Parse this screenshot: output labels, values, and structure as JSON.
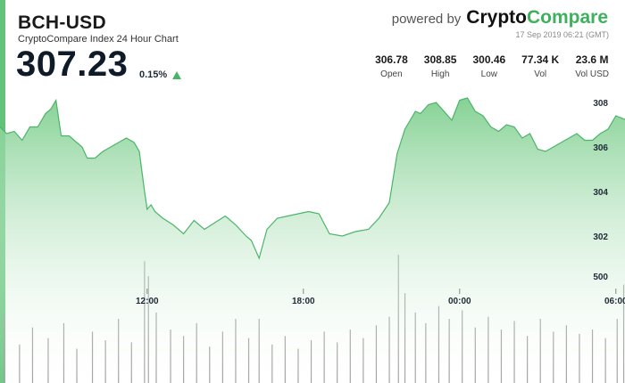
{
  "header": {
    "pair": "BCH-USD",
    "subtitle": "CryptoCompare Index 24 Hour Chart",
    "price": "307.23",
    "change": "0.15%",
    "powered": "powered by",
    "brand_a": "Crypto",
    "brand_b": "Compare",
    "date": "17 Sep 2019 06:21 (GMT)"
  },
  "stats": [
    {
      "value": "306.78",
      "label": "Open"
    },
    {
      "value": "308.85",
      "label": "High"
    },
    {
      "value": "300.46",
      "label": "Low"
    },
    {
      "value": "77.34 K",
      "label": "Vol"
    },
    {
      "value": "23.6 M",
      "label": "Vol USD"
    }
  ],
  "colors": {
    "accent": "#3fb05d",
    "line": "#4cb46a",
    "fill_top": "#7fcf8f",
    "volume": "#9a9a9a"
  },
  "chart_data": {
    "type": "area",
    "x_unit": "hours",
    "x_ticks": [
      {
        "t": 12,
        "label": "12:00"
      },
      {
        "t": 18,
        "label": "18:00"
      },
      {
        "t": 24,
        "label": "00:00"
      },
      {
        "t": 30,
        "label": "06:00"
      }
    ],
    "y_ticks": [
      302,
      304,
      306,
      308
    ],
    "ylim": [
      300.2,
      308.6
    ],
    "xlim": [
      6.35,
      30.35
    ],
    "volume_ticks": [
      {
        "v": 500,
        "label": "500"
      }
    ],
    "volume_ylim": [
      0,
      750
    ],
    "series": [
      {
        "x": [
          6.35,
          6.6,
          6.9,
          7.2,
          7.5,
          7.8,
          8.1,
          8.3,
          8.5,
          8.7,
          9.0,
          9.3,
          9.5,
          9.7,
          10.0,
          10.3,
          10.6,
          10.9,
          11.2,
          11.5,
          11.7,
          11.9,
          12.0,
          12.15,
          12.3,
          12.6,
          13.0,
          13.4,
          13.8,
          14.2,
          14.6,
          15.0,
          15.4,
          15.8,
          16.0,
          16.3,
          16.6,
          17.0,
          17.4,
          17.8,
          18.2,
          18.6,
          19.0,
          19.5,
          20.0,
          20.5,
          20.9,
          21.3,
          21.6,
          21.9,
          22.1,
          22.3,
          22.5,
          22.8,
          23.1,
          23.4,
          23.7,
          24.0,
          24.3,
          24.6,
          24.9,
          25.2,
          25.5,
          25.8,
          26.1,
          26.4,
          26.7,
          27.0,
          27.3,
          27.6,
          27.9,
          28.2,
          28.5,
          28.8,
          29.1,
          29.4,
          29.7,
          30.0,
          30.35
        ],
        "y": [
          306.9,
          306.6,
          306.7,
          306.3,
          306.9,
          306.9,
          307.5,
          307.7,
          308.1,
          306.5,
          306.5,
          306.2,
          306.0,
          305.5,
          305.5,
          305.8,
          306.0,
          306.2,
          306.4,
          306.2,
          305.8,
          304.0,
          303.2,
          303.4,
          303.1,
          302.8,
          302.5,
          302.1,
          302.7,
          302.3,
          302.6,
          302.9,
          302.5,
          302.0,
          301.8,
          301.0,
          302.3,
          302.8,
          302.9,
          303.0,
          303.1,
          303.0,
          302.1,
          302.0,
          302.2,
          302.3,
          302.8,
          303.5,
          305.7,
          306.8,
          307.2,
          307.6,
          307.5,
          307.9,
          308.0,
          307.6,
          307.2,
          308.1,
          308.2,
          307.6,
          307.4,
          306.9,
          306.7,
          307.0,
          306.9,
          306.4,
          306.6,
          305.9,
          305.8,
          306.0,
          306.2,
          306.4,
          306.6,
          306.3,
          306.3,
          306.6,
          306.8,
          307.4,
          307.23
        ]
      }
    ],
    "volume": [
      {
        "t": 6.5,
        "v": 320
      },
      {
        "t": 7.1,
        "v": 180
      },
      {
        "t": 7.6,
        "v": 260
      },
      {
        "t": 8.2,
        "v": 210
      },
      {
        "t": 8.8,
        "v": 280
      },
      {
        "t": 9.3,
        "v": 160
      },
      {
        "t": 9.9,
        "v": 240
      },
      {
        "t": 10.4,
        "v": 200
      },
      {
        "t": 10.9,
        "v": 300
      },
      {
        "t": 11.4,
        "v": 190
      },
      {
        "t": 11.9,
        "v": 570
      },
      {
        "t": 12.05,
        "v": 500
      },
      {
        "t": 12.35,
        "v": 330
      },
      {
        "t": 12.9,
        "v": 250
      },
      {
        "t": 13.4,
        "v": 220
      },
      {
        "t": 13.9,
        "v": 280
      },
      {
        "t": 14.4,
        "v": 170
      },
      {
        "t": 14.9,
        "v": 240
      },
      {
        "t": 15.4,
        "v": 300
      },
      {
        "t": 15.9,
        "v": 210
      },
      {
        "t": 16.3,
        "v": 300
      },
      {
        "t": 16.8,
        "v": 180
      },
      {
        "t": 17.3,
        "v": 220
      },
      {
        "t": 17.8,
        "v": 160
      },
      {
        "t": 18.3,
        "v": 200
      },
      {
        "t": 18.8,
        "v": 240
      },
      {
        "t": 19.3,
        "v": 190
      },
      {
        "t": 19.8,
        "v": 250
      },
      {
        "t": 20.3,
        "v": 210
      },
      {
        "t": 20.8,
        "v": 270
      },
      {
        "t": 21.3,
        "v": 310
      },
      {
        "t": 21.65,
        "v": 600
      },
      {
        "t": 21.9,
        "v": 420
      },
      {
        "t": 22.3,
        "v": 330
      },
      {
        "t": 22.7,
        "v": 280
      },
      {
        "t": 23.2,
        "v": 360
      },
      {
        "t": 23.6,
        "v": 300
      },
      {
        "t": 24.1,
        "v": 340
      },
      {
        "t": 24.6,
        "v": 260
      },
      {
        "t": 25.1,
        "v": 310
      },
      {
        "t": 25.6,
        "v": 250
      },
      {
        "t": 26.1,
        "v": 290
      },
      {
        "t": 26.6,
        "v": 220
      },
      {
        "t": 27.1,
        "v": 300
      },
      {
        "t": 27.6,
        "v": 240
      },
      {
        "t": 28.1,
        "v": 270
      },
      {
        "t": 28.6,
        "v": 230
      },
      {
        "t": 29.1,
        "v": 250
      },
      {
        "t": 29.6,
        "v": 210
      },
      {
        "t": 30.05,
        "v": 300
      },
      {
        "t": 30.3,
        "v": 460
      }
    ]
  }
}
